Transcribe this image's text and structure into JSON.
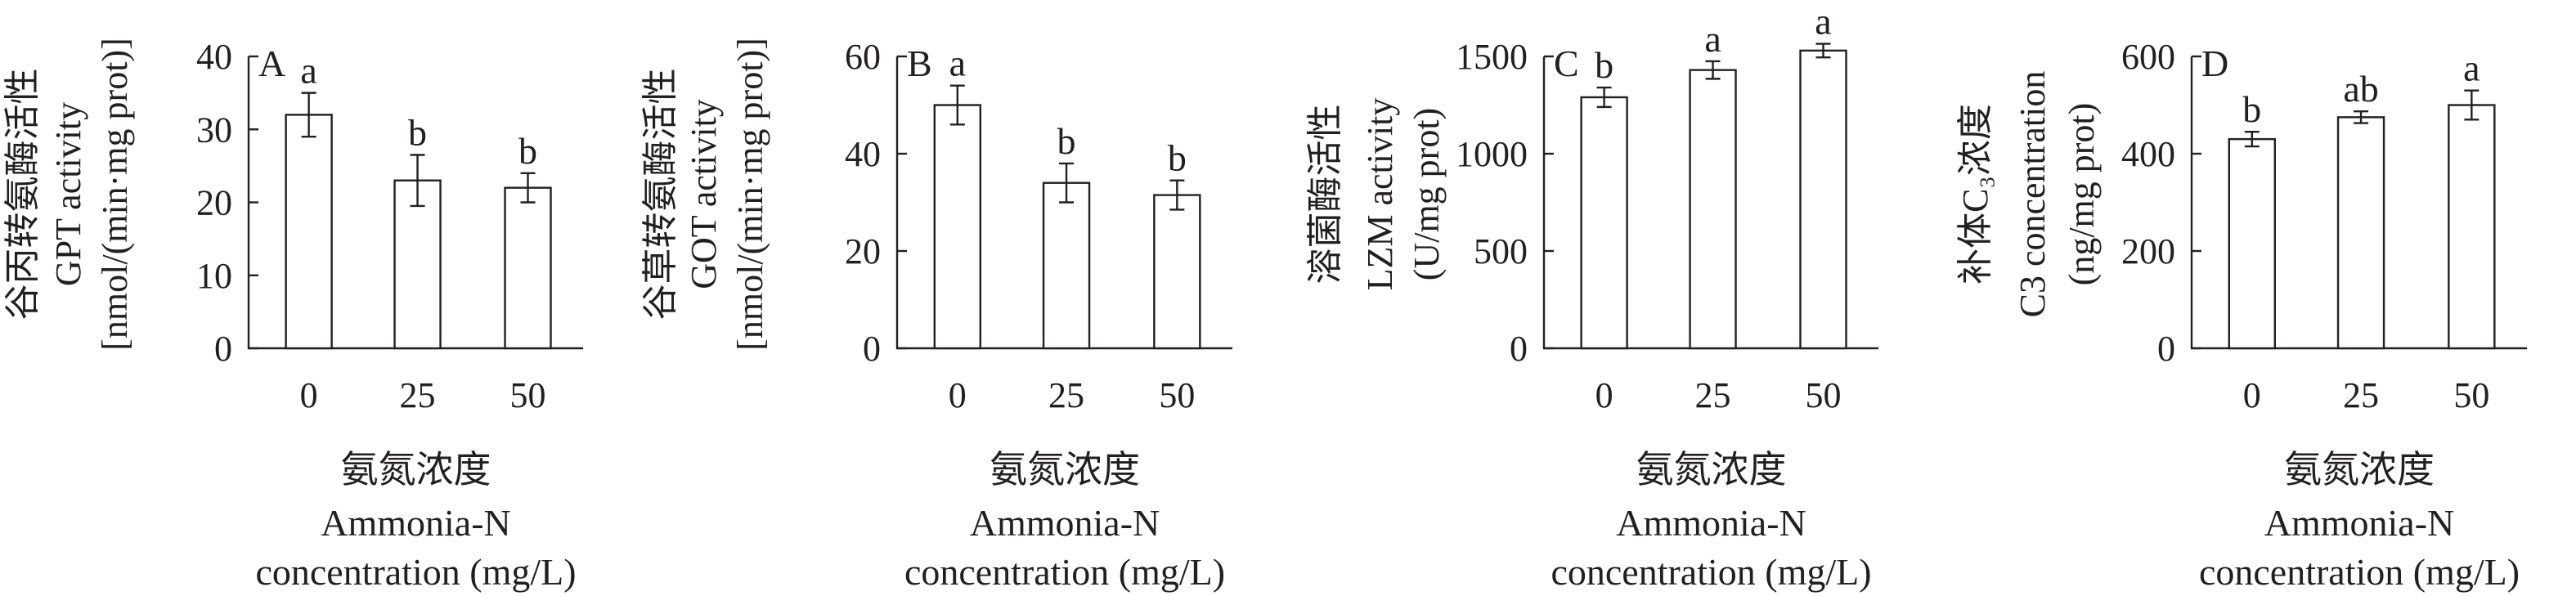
{
  "chart_data": [
    {
      "type": "bar",
      "panel_label": "A",
      "categories": [
        "0",
        "25",
        "50"
      ],
      "values": [
        32,
        23,
        22
      ],
      "errors": [
        3,
        3.5,
        2
      ],
      "significance": [
        "a",
        "b",
        "b"
      ],
      "ylim": [
        0,
        40
      ],
      "yticks": [
        "0",
        "10",
        "20",
        "30",
        "40"
      ],
      "ylabel_lines": [
        "谷丙转氨酶活性",
        "GPT activity",
        "[nmol/(min·mg prot)]"
      ],
      "xlabel_lines": [
        "氨氮浓度",
        "Ammonia-N",
        "concentration (mg/L)"
      ]
    },
    {
      "type": "bar",
      "panel_label": "B",
      "categories": [
        "0",
        "25",
        "50"
      ],
      "values": [
        50,
        34,
        31.5
      ],
      "errors": [
        4,
        4,
        3
      ],
      "significance": [
        "a",
        "b",
        "b"
      ],
      "ylim": [
        0,
        60
      ],
      "yticks": [
        "0",
        "20",
        "40",
        "60"
      ],
      "ylabel_lines": [
        "谷草转氨酶活性",
        "GOT activity",
        "[nmol/(min·mg prot)]"
      ],
      "xlabel_lines": [
        "氨氮浓度",
        "Ammonia-N",
        "concentration (mg/L)"
      ]
    },
    {
      "type": "bar",
      "panel_label": "C",
      "categories": [
        "0",
        "25",
        "50"
      ],
      "values": [
        1290,
        1430,
        1530
      ],
      "errors": [
        50,
        45,
        35
      ],
      "significance": [
        "b",
        "a",
        "a"
      ],
      "ylim": [
        0,
        1500
      ],
      "yticks": [
        "0",
        "500",
        "1000",
        "1500"
      ],
      "ylabel_lines": [
        "溶菌酶活性",
        "LZM activity",
        "(U/mg prot)"
      ],
      "xlabel_lines": [
        "氨氮浓度",
        "Ammonia-N",
        "concentration (mg/L)"
      ]
    },
    {
      "type": "bar",
      "panel_label": "D",
      "categories": [
        "0",
        "25",
        "50"
      ],
      "values": [
        430,
        475,
        500
      ],
      "errors": [
        15,
        12,
        30
      ],
      "significance": [
        "b",
        "ab",
        "a"
      ],
      "ylim": [
        0,
        600
      ],
      "yticks": [
        "0",
        "200",
        "400",
        "600"
      ],
      "ylabel_lines": [
        "补体C₃浓度",
        "C3 concentration",
        "(ng/mg prot)"
      ],
      "xlabel_lines": [
        "氨氮浓度",
        "Ammonia-N",
        "concentration (mg/L)"
      ]
    }
  ]
}
